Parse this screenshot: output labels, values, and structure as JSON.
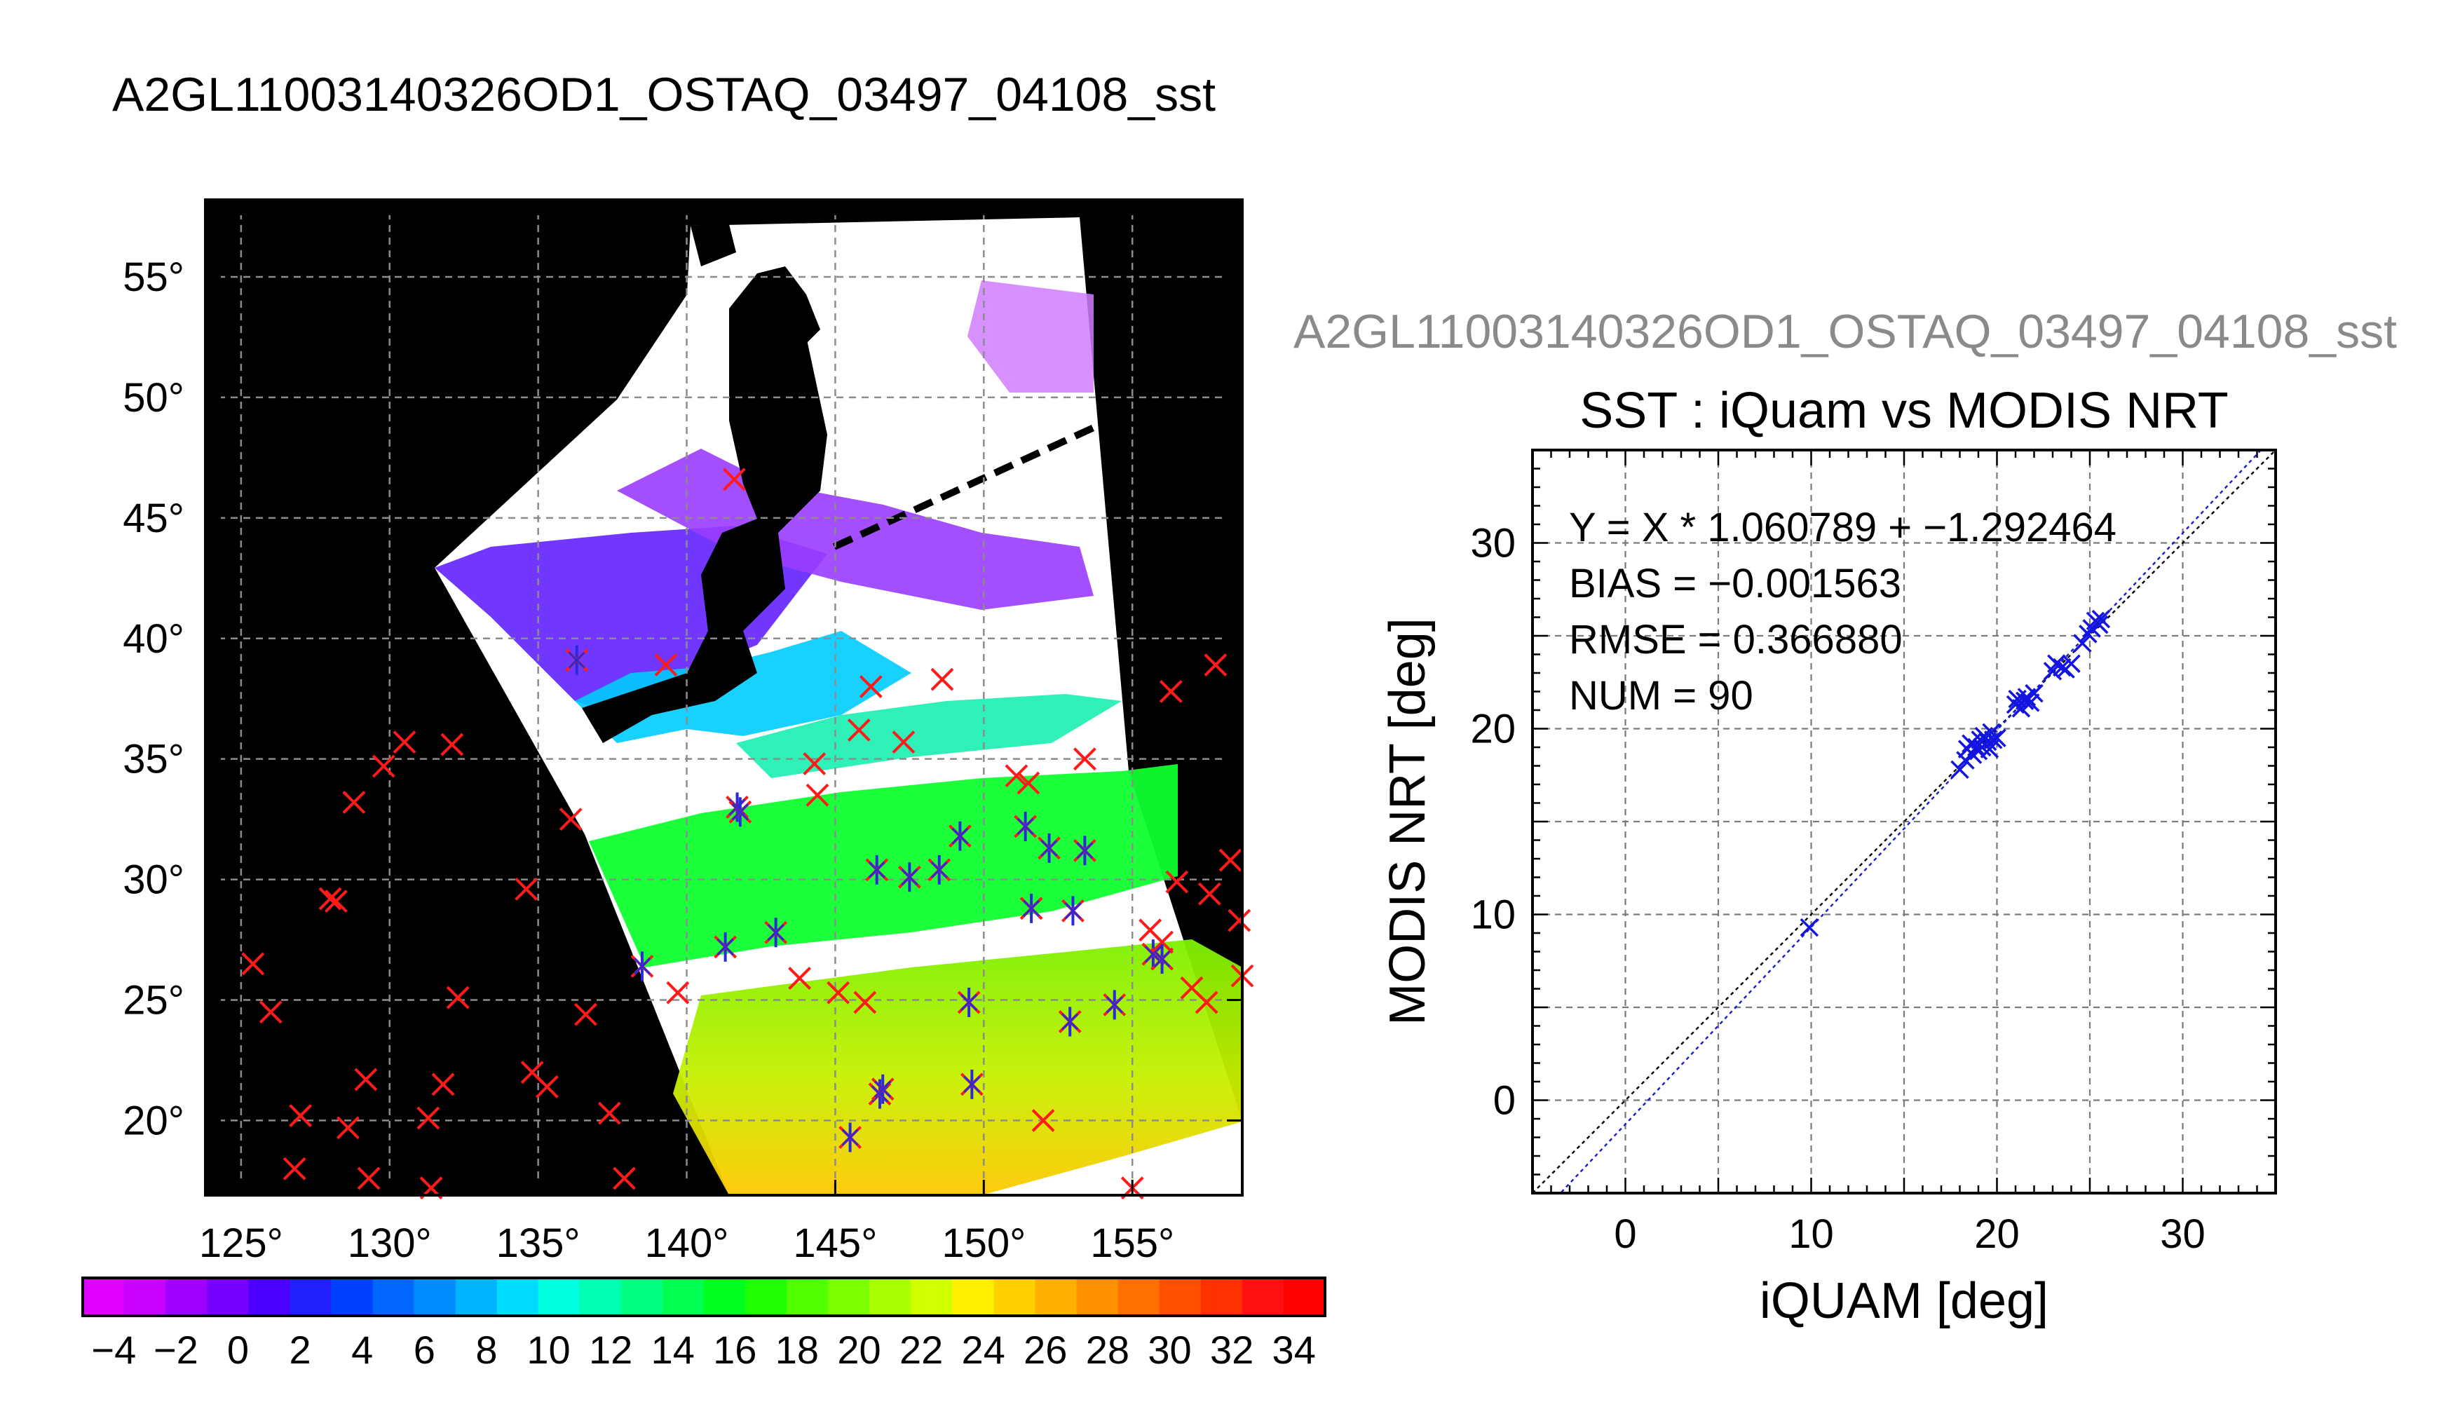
{
  "figure_title": "A2GL11003140326OD1_OSTAQ_03497_04108_sst",
  "scatter_overlay_title": "A2GL11003140326OD1_OSTAQ_03497_04108_sst",
  "map": {
    "lon_ticks": [
      125,
      130,
      135,
      140,
      145,
      150,
      155
    ],
    "lat_ticks": [
      20,
      25,
      30,
      35,
      40,
      45,
      50,
      55
    ],
    "degree_symbol": "°",
    "lon_range": [
      123.8,
      158.7
    ],
    "lat_range": [
      16.9,
      58.2
    ],
    "colors": {
      "background": "#000000",
      "cloud": "#ffffff",
      "grid": "#8c8c8c",
      "red_x": "#ff1a1a",
      "blue_star": "#2a2ad8"
    },
    "buoys_x": [
      [
        125.4,
        26.5
      ],
      [
        126.0,
        24.5
      ],
      [
        127.0,
        20.2
      ],
      [
        126.8,
        18.0
      ],
      [
        128.0,
        29.2
      ],
      [
        128.2,
        29.1
      ],
      [
        128.6,
        19.7
      ],
      [
        128.8,
        33.2
      ],
      [
        129.2,
        21.7
      ],
      [
        129.3,
        17.6
      ],
      [
        129.8,
        34.7
      ],
      [
        130.5,
        35.7
      ],
      [
        131.3,
        20.1
      ],
      [
        131.4,
        17.2
      ],
      [
        131.8,
        21.5
      ],
      [
        132.1,
        35.6
      ],
      [
        132.3,
        25.1
      ],
      [
        134.6,
        29.6
      ],
      [
        134.8,
        22.0
      ],
      [
        135.3,
        21.4
      ],
      [
        136.1,
        32.5
      ],
      [
        136.6,
        24.4
      ],
      [
        137.4,
        20.3
      ],
      [
        137.9,
        17.6
      ],
      [
        139.3,
        38.9
      ],
      [
        139.7,
        25.3
      ],
      [
        141.6,
        46.6
      ],
      [
        143.8,
        25.9
      ],
      [
        144.3,
        34.8
      ],
      [
        144.4,
        33.5
      ],
      [
        145.1,
        25.3
      ],
      [
        145.8,
        36.2
      ],
      [
        146.0,
        24.9
      ],
      [
        146.2,
        38.0
      ],
      [
        147.3,
        35.7
      ],
      [
        148.6,
        38.3
      ],
      [
        151.1,
        34.3
      ],
      [
        151.5,
        34.0
      ],
      [
        152.0,
        20.0
      ],
      [
        153.4,
        35.0
      ],
      [
        155.0,
        17.2
      ],
      [
        155.6,
        27.9
      ],
      [
        156.0,
        27.4
      ],
      [
        156.3,
        37.8
      ],
      [
        156.5,
        29.9
      ],
      [
        157.0,
        25.5
      ],
      [
        157.5,
        24.9
      ],
      [
        157.6,
        29.4
      ],
      [
        157.8,
        38.9
      ],
      [
        158.3,
        30.8
      ],
      [
        158.6,
        28.3
      ],
      [
        158.7,
        26.0
      ]
    ],
    "buoys_match": [
      [
        136.3,
        39.1
      ],
      [
        138.5,
        26.4
      ],
      [
        141.3,
        27.2
      ],
      [
        141.7,
        33.0
      ],
      [
        141.8,
        32.8
      ],
      [
        143.0,
        27.8
      ],
      [
        145.5,
        19.3
      ],
      [
        146.4,
        30.4
      ],
      [
        146.5,
        21.1
      ],
      [
        146.6,
        21.3
      ],
      [
        147.5,
        30.1
      ],
      [
        148.5,
        30.4
      ],
      [
        149.2,
        31.8
      ],
      [
        149.5,
        24.9
      ],
      [
        149.6,
        21.5
      ],
      [
        151.4,
        32.2
      ],
      [
        151.6,
        28.8
      ],
      [
        152.2,
        31.3
      ],
      [
        152.9,
        24.1
      ],
      [
        153.0,
        28.7
      ],
      [
        153.4,
        31.2
      ],
      [
        154.4,
        24.8
      ],
      [
        155.7,
        26.9
      ],
      [
        156.0,
        26.7
      ]
    ]
  },
  "colorbar": {
    "tick_labels": [
      "−4",
      "−2",
      "0",
      "2",
      "4",
      "6",
      "8",
      "10",
      "12",
      "14",
      "16",
      "18",
      "20",
      "22",
      "24",
      "26",
      "28",
      "30",
      "32",
      "34"
    ],
    "range": [
      -5,
      35
    ],
    "segments": [
      "#e000ff",
      "#c800ff",
      "#a000ff",
      "#7800ff",
      "#4a00ff",
      "#2020ff",
      "#0040ff",
      "#0066ff",
      "#008cff",
      "#00b4ff",
      "#00dcff",
      "#00ffe0",
      "#00ffb0",
      "#00ff80",
      "#00ff50",
      "#00ff1c",
      "#20ff00",
      "#50ff00",
      "#7cff00",
      "#a8ff00",
      "#d2ff00",
      "#fff000",
      "#ffd000",
      "#ffb000",
      "#ff9000",
      "#ff7000",
      "#ff5000",
      "#ff3000",
      "#ff1010",
      "#ff0000"
    ]
  },
  "chart_data": {
    "type": "scatter",
    "title": "SST : iQuam vs MODIS NRT",
    "xlabel": "iQUAM [deg]",
    "ylabel": "MODIS NRT [deg]",
    "xlim": [
      -5,
      35
    ],
    "ylim": [
      -5,
      35
    ],
    "x_ticks": [
      0,
      10,
      20,
      30
    ],
    "y_ticks": [
      0,
      10,
      20,
      30
    ],
    "grid": true,
    "stats_text": [
      "Y = X * 1.060789 + −1.292464",
      "BIAS = −0.001563",
      "RMSE = 0.366880",
      "NUM = 90"
    ],
    "regression": {
      "slope": 1.060789,
      "intercept": -1.292464
    },
    "points": [
      [
        9.9,
        9.3
      ],
      [
        18.0,
        17.8
      ],
      [
        18.3,
        18.3
      ],
      [
        18.4,
        18.9
      ],
      [
        18.6,
        19.2
      ],
      [
        18.7,
        18.6
      ],
      [
        18.9,
        19.0
      ],
      [
        19.0,
        18.8
      ],
      [
        19.1,
        19.4
      ],
      [
        19.2,
        19.0
      ],
      [
        19.3,
        19.6
      ],
      [
        19.5,
        19.3
      ],
      [
        19.6,
        18.9
      ],
      [
        19.7,
        19.8
      ],
      [
        19.8,
        19.4
      ],
      [
        20.0,
        19.5
      ],
      [
        21.0,
        21.3
      ],
      [
        21.1,
        21.6
      ],
      [
        21.3,
        21.1
      ],
      [
        21.5,
        21.5
      ],
      [
        21.6,
        21.7
      ],
      [
        21.8,
        21.4
      ],
      [
        22.0,
        21.9
      ],
      [
        23.0,
        23.1
      ],
      [
        23.2,
        23.5
      ],
      [
        23.5,
        23.3
      ],
      [
        23.7,
        23.2
      ],
      [
        24.0,
        23.5
      ],
      [
        24.6,
        24.6
      ],
      [
        24.9,
        25.1
      ],
      [
        25.1,
        25.4
      ],
      [
        25.3,
        25.8
      ],
      [
        25.5,
        25.6
      ],
      [
        25.6,
        25.9
      ]
    ]
  }
}
